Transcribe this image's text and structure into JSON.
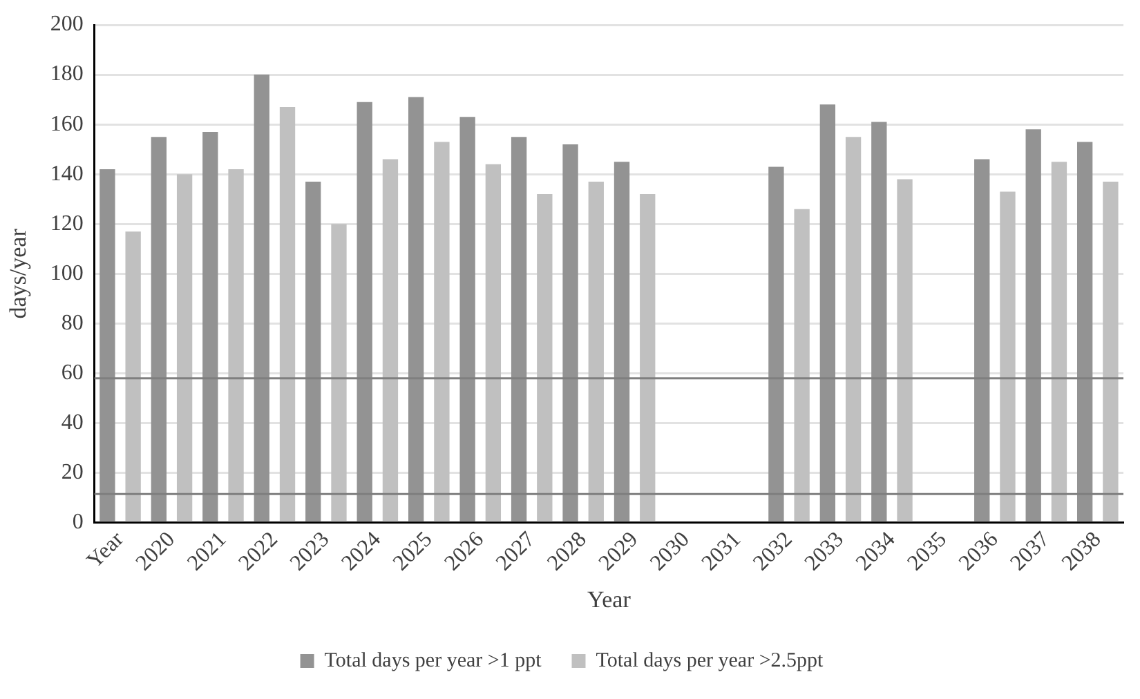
{
  "chart_data": {
    "type": "bar",
    "xlabel": "Year",
    "ylabel": "days/year",
    "categories": [
      "Year",
      "2020",
      "2021",
      "2022",
      "2023",
      "2024",
      "2025",
      "2026",
      "2027",
      "2028",
      "2029",
      "2030",
      "2031",
      "2032",
      "2033",
      "2034",
      "2035",
      "2036",
      "2037",
      "2038"
    ],
    "series": [
      {
        "name": "Total days per year >1 ppt",
        "color": "#939393",
        "values": [
          142,
          155,
          157,
          180,
          137,
          169,
          171,
          163,
          155,
          152,
          145,
          null,
          null,
          143,
          168,
          161,
          null,
          146,
          158,
          153
        ]
      },
      {
        "name": "Total days per year >2.5ppt",
        "color": "#c0c0c0",
        "values": [
          117,
          140,
          142,
          167,
          120,
          146,
          153,
          144,
          132,
          137,
          132,
          null,
          null,
          126,
          155,
          138,
          null,
          133,
          145,
          137
        ]
      }
    ],
    "ylim": [
      0,
      200
    ],
    "yticks": [
      0,
      20,
      40,
      60,
      80,
      100,
      120,
      140,
      160,
      180,
      200
    ],
    "ref_lines": [
      {
        "axis": "y",
        "value": 58,
        "color": "#7f7f7f"
      },
      {
        "axis": "y",
        "value": 11.5,
        "color": "#7f7f7f"
      }
    ],
    "grid": "y",
    "legend": "bottom"
  }
}
